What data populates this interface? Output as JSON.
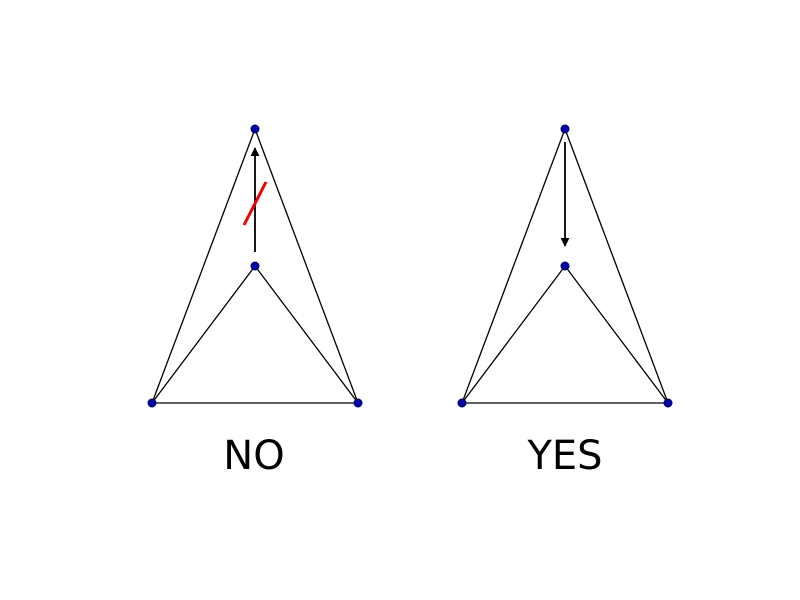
{
  "colors": {
    "edge": "#000000",
    "vertex_fill": "#0000aa",
    "vertex_stroke": "#000066",
    "cross_mark": "#ee0000",
    "arrow": "#000000",
    "background": "#ffffff"
  },
  "panels": [
    {
      "caption": "NO",
      "arrow_direction": "up",
      "arrow_crossed_out": true
    },
    {
      "caption": "YES",
      "arrow_direction": "down",
      "arrow_crossed_out": false
    }
  ]
}
